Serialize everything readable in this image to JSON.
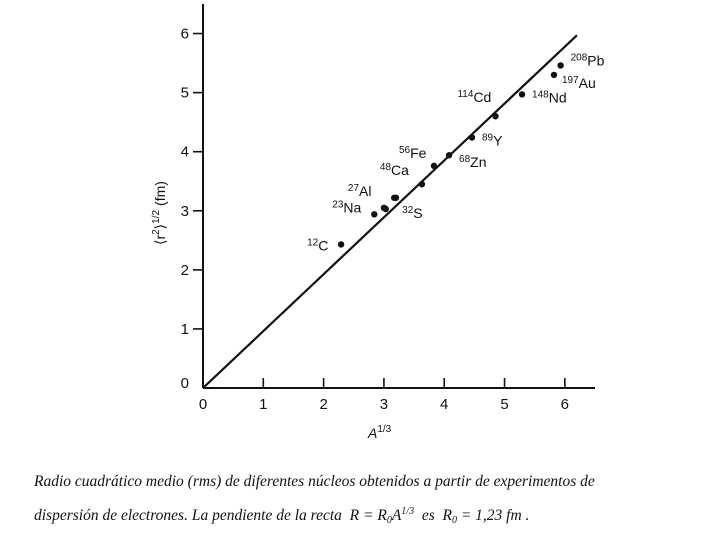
{
  "chart_data": {
    "type": "scatter",
    "title": "",
    "xlabel_base": "A",
    "xlabel_exp": "1/3",
    "ylabel_main": "⟨r",
    "ylabel_sup": "2",
    "ylabel_close": "⟩",
    "ylabel_exp": "1/2",
    "ylabel_unit": "(fm)",
    "xlim": [
      0,
      6.5
    ],
    "ylim": [
      0,
      6.5
    ],
    "xticks": [
      "0",
      "1",
      "2",
      "3",
      "4",
      "5",
      "6"
    ],
    "yticks": [
      "0",
      "1",
      "2",
      "3",
      "4",
      "5",
      "6"
    ],
    "grid": false,
    "points": [
      {
        "mass": "12",
        "symbol": "C",
        "x": 2.29,
        "y": 2.43
      },
      {
        "mass": "23",
        "symbol": "Na",
        "x": 2.84,
        "y": 2.94
      },
      {
        "mass": "",
        "symbol": "",
        "x": 3.03,
        "y": 3.03
      },
      {
        "mass": "27",
        "symbol": "Al",
        "x": 3.0,
        "y": 3.05
      },
      {
        "mass": "",
        "symbol": "",
        "x": 3.2,
        "y": 3.22
      },
      {
        "mass": "32",
        "symbol": "S",
        "x": 3.17,
        "y": 3.22
      },
      {
        "mass": "48",
        "symbol": "Ca",
        "x": 3.63,
        "y": 3.45
      },
      {
        "mass": "56",
        "symbol": "Fe",
        "x": 3.83,
        "y": 3.76
      },
      {
        "mass": "68",
        "symbol": "Zn",
        "x": 4.08,
        "y": 3.94
      },
      {
        "mass": "89",
        "symbol": "Y",
        "x": 4.46,
        "y": 4.24
      },
      {
        "mass": "114",
        "symbol": "Cd",
        "x": 4.85,
        "y": 4.6
      },
      {
        "mass": "148",
        "symbol": "Nd",
        "x": 5.29,
        "y": 4.97
      },
      {
        "mass": "197",
        "symbol": "Au",
        "x": 5.82,
        "y": 5.3
      },
      {
        "mass": "208",
        "symbol": "Pb",
        "x": 5.93,
        "y": 5.46
      }
    ],
    "fit_line": {
      "x": [
        0,
        6.2
      ],
      "y": [
        0,
        5.97
      ]
    }
  },
  "caption": {
    "line1": "Radio cuadrático medio (rms) de diferentes núcleos obtenidos a partir de experimentos de",
    "line2_prefix": "dispersión de electrones. La pendiente de la recta",
    "formula_lhs": "R = R",
    "formula_sub": "0",
    "formula_base": "A",
    "formula_exp": "1/3",
    "middle": "es",
    "r0_lhs": "R",
    "r0_sub": "0",
    "r0_value": "= 1,23 fm ."
  }
}
